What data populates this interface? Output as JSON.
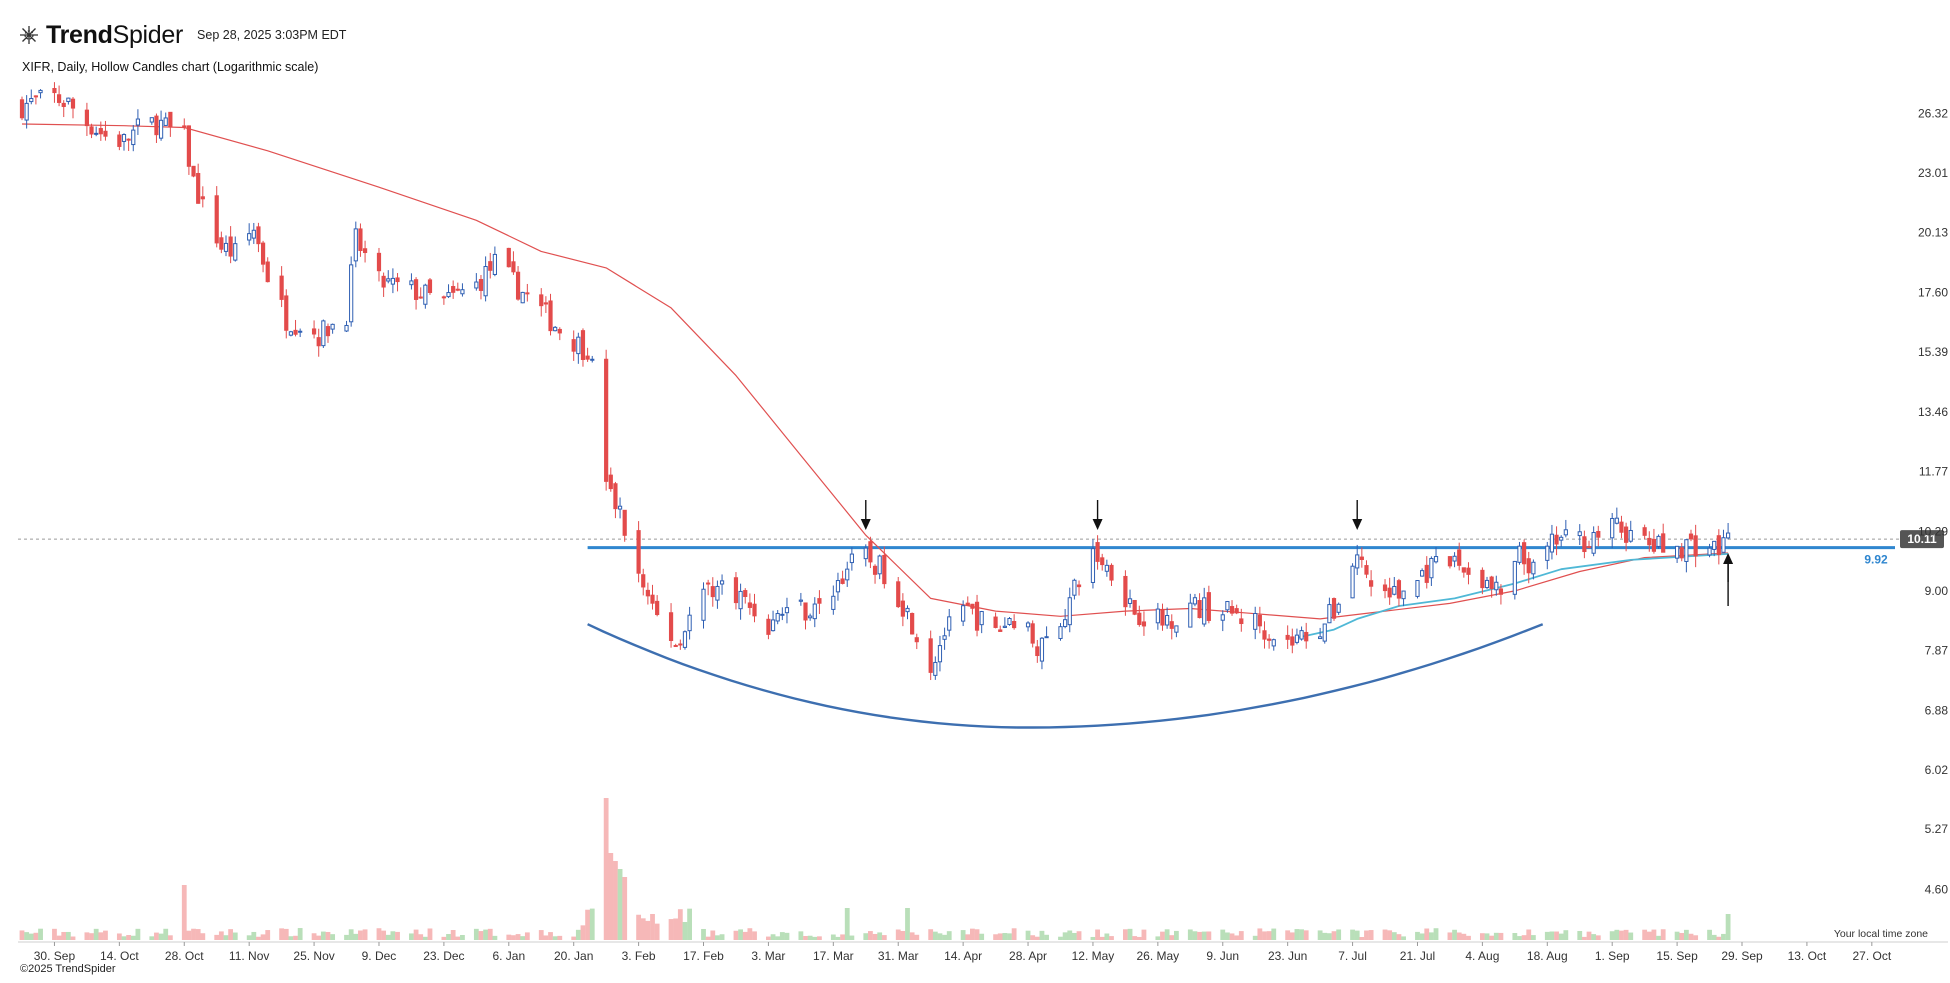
{
  "header": {
    "brand_bold": "Trend",
    "brand_rest": "Spider",
    "timestamp": "Sep 28, 2025 3:03PM EDT",
    "logo_icon": "spider-web-logo-icon"
  },
  "subtitle": "XIFR, Daily, Hollow Candles chart (Logarithmic scale)",
  "footer": "©2025 TrendSpider",
  "timezone_note": "Your local time zone",
  "colors": {
    "up": "#2f5fb3",
    "down": "#e34b4b",
    "ma": "#e05050",
    "vwap": "#4fb8d6",
    "support": "#2f86cf",
    "curve": "#3d6fb0",
    "vol_up": "#b9dfb9",
    "vol_down": "#f6b8b8"
  },
  "chart_data": {
    "type": "candlestick",
    "ticker": "XIFR",
    "scale": "logarithmic",
    "ylim": [
      4.2,
      28.5
    ],
    "y_ticks": [
      "26.32",
      "23.01",
      "20.13",
      "17.60",
      "15.39",
      "13.46",
      "11.77",
      "10.29",
      "9.00",
      "7.87",
      "6.88",
      "6.02",
      "5.27",
      "4.60"
    ],
    "x_ticks": [
      "30. Sep",
      "14. Oct",
      "28. Oct",
      "11. Nov",
      "25. Nov",
      "9. Dec",
      "23. Dec",
      "6. Jan",
      "20. Jan",
      "3. Feb",
      "17. Feb",
      "3. Mar",
      "17. Mar",
      "31. Mar",
      "14. Apr",
      "28. Apr",
      "12. May",
      "26. May",
      "9. Jun",
      "23. Jun",
      "7. Jul",
      "21. Jul",
      "4. Aug",
      "18. Aug",
      "1. Sep",
      "15. Sep",
      "29. Sep",
      "13. Oct",
      "27. Oct"
    ],
    "x_range": [
      "2024-09-23",
      "2025-11-01"
    ],
    "last_price": "10.11",
    "support_level": 9.92,
    "support_label": "9.92",
    "close_path": [
      [
        "2024-09-23",
        26.8
      ],
      [
        "2024-09-30",
        27.3
      ],
      [
        "2024-10-03",
        26.9
      ],
      [
        "2024-10-07",
        25.8
      ],
      [
        "2024-10-11",
        25.0
      ],
      [
        "2024-10-15",
        24.7
      ],
      [
        "2024-10-18",
        25.4
      ],
      [
        "2024-10-22",
        25.8
      ],
      [
        "2024-10-28",
        24.9
      ],
      [
        "2024-10-30",
        22.6
      ],
      [
        "2024-11-01",
        21.3
      ],
      [
        "2024-11-05",
        19.5
      ],
      [
        "2024-11-08",
        19.2
      ],
      [
        "2024-11-12",
        20.3
      ],
      [
        "2024-11-15",
        18.3
      ],
      [
        "2024-11-19",
        16.6
      ],
      [
        "2024-11-22",
        16.4
      ],
      [
        "2024-11-26",
        16.0
      ],
      [
        "2024-12-02",
        16.8
      ],
      [
        "2024-12-04",
        19.8
      ],
      [
        "2024-12-09",
        18.0
      ],
      [
        "2024-12-16",
        17.7
      ],
      [
        "2024-12-23",
        17.2
      ],
      [
        "2024-12-30",
        17.9
      ],
      [
        "2025-01-03",
        18.8
      ],
      [
        "2025-01-08",
        17.8
      ],
      [
        "2025-01-13",
        16.9
      ],
      [
        "2025-01-17",
        16.2
      ],
      [
        "2025-01-24",
        15.3
      ],
      [
        "2025-01-27",
        11.4
      ],
      [
        "2025-01-30",
        10.7
      ],
      [
        "2025-02-03",
        9.3
      ],
      [
        "2025-02-07",
        8.5
      ],
      [
        "2025-02-11",
        8.0
      ],
      [
        "2025-02-18",
        9.1
      ],
      [
        "2025-02-24",
        9.0
      ],
      [
        "2025-03-03",
        8.3
      ],
      [
        "2025-03-07",
        8.7
      ],
      [
        "2025-03-14",
        8.6
      ],
      [
        "2025-03-20",
        9.5
      ],
      [
        "2025-03-24",
        9.7
      ],
      [
        "2025-03-28",
        9.4
      ],
      [
        "2025-04-03",
        8.4
      ],
      [
        "2025-04-07",
        7.6
      ],
      [
        "2025-04-10",
        8.2
      ],
      [
        "2025-04-15",
        8.6
      ],
      [
        "2025-04-21",
        8.2
      ],
      [
        "2025-04-25",
        8.5
      ],
      [
        "2025-05-01",
        7.9
      ],
      [
        "2025-05-06",
        8.6
      ],
      [
        "2025-05-12",
        9.8
      ],
      [
        "2025-05-16",
        9.4
      ],
      [
        "2025-05-21",
        8.6
      ],
      [
        "2025-05-27",
        8.4
      ],
      [
        "2025-06-02",
        8.7
      ],
      [
        "2025-06-09",
        8.6
      ],
      [
        "2025-06-16",
        8.4
      ],
      [
        "2025-06-23",
        8.0
      ],
      [
        "2025-06-30",
        8.3
      ],
      [
        "2025-07-03",
        8.6
      ],
      [
        "2025-07-08",
        9.8
      ],
      [
        "2025-07-11",
        9.1
      ],
      [
        "2025-07-17",
        8.9
      ],
      [
        "2025-07-23",
        9.4
      ],
      [
        "2025-07-29",
        9.6
      ],
      [
        "2025-08-04",
        9.2
      ],
      [
        "2025-08-08",
        8.9
      ],
      [
        "2025-08-12",
        9.7
      ],
      [
        "2025-08-15",
        9.4
      ],
      [
        "2025-08-20",
        10.1
      ],
      [
        "2025-08-26",
        10.1
      ],
      [
        "2025-09-02",
        10.4
      ],
      [
        "2025-09-08",
        10.0
      ],
      [
        "2025-09-12",
        9.9
      ],
      [
        "2025-09-18",
        10.0
      ],
      [
        "2025-09-24",
        9.9
      ],
      [
        "2025-09-26",
        10.11
      ]
    ],
    "moving_average": [
      [
        "2024-09-23",
        25.7
      ],
      [
        "2024-10-15",
        25.6
      ],
      [
        "2024-10-28",
        25.5
      ],
      [
        "2024-11-15",
        24.2
      ],
      [
        "2024-12-09",
        22.3
      ],
      [
        "2024-12-30",
        20.7
      ],
      [
        "2025-01-13",
        19.3
      ],
      [
        "2025-01-27",
        18.6
      ],
      [
        "2025-02-10",
        17.0
      ],
      [
        "2025-02-24",
        14.6
      ],
      [
        "2025-03-10",
        12.2
      ],
      [
        "2025-03-24",
        10.2
      ],
      [
        "2025-04-07",
        8.85
      ],
      [
        "2025-04-21",
        8.6
      ],
      [
        "2025-05-05",
        8.5
      ],
      [
        "2025-05-19",
        8.6
      ],
      [
        "2025-06-02",
        8.65
      ],
      [
        "2025-06-16",
        8.55
      ],
      [
        "2025-06-30",
        8.45
      ],
      [
        "2025-07-14",
        8.6
      ],
      [
        "2025-07-28",
        8.75
      ],
      [
        "2025-08-11",
        9.0
      ],
      [
        "2025-08-25",
        9.4
      ],
      [
        "2025-09-08",
        9.7
      ],
      [
        "2025-09-26",
        9.8
      ]
    ],
    "anchored_vwap": [
      [
        "2025-06-25",
        8.1
      ],
      [
        "2025-07-03",
        8.25
      ],
      [
        "2025-07-08",
        8.45
      ],
      [
        "2025-07-17",
        8.7
      ],
      [
        "2025-07-29",
        8.85
      ],
      [
        "2025-08-11",
        9.15
      ],
      [
        "2025-08-21",
        9.45
      ],
      [
        "2025-09-05",
        9.65
      ],
      [
        "2025-09-26",
        9.78
      ]
    ],
    "cup_pattern": {
      "start": [
        "2025-01-23",
        8.35
      ],
      "bottom": [
        "2025-04-28",
        6.62
      ],
      "end": [
        "2025-08-17",
        8.35
      ]
    },
    "arrows": [
      {
        "date": "2025-03-24",
        "direction": "down"
      },
      {
        "date": "2025-05-13",
        "direction": "down"
      },
      {
        "date": "2025-07-08",
        "direction": "down"
      },
      {
        "date": "2025-09-26",
        "direction": "up"
      }
    ]
  }
}
